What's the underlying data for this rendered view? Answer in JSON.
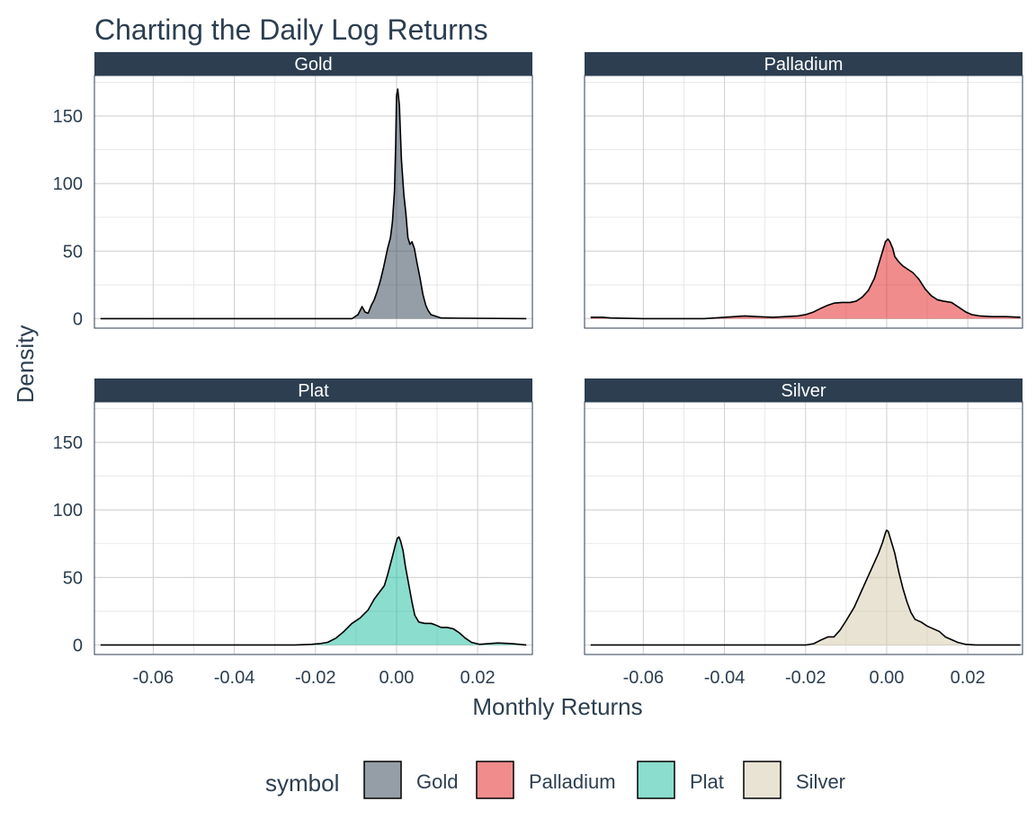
{
  "chart_data": {
    "type": "area",
    "title": "Charting the Daily Log Returns",
    "xlabel": "Monthly Returns",
    "ylabel": "Density",
    "xlim": [
      -0.0745,
      0.0335
    ],
    "ylim": [
      -7,
      180
    ],
    "x_ticks": [
      -0.06,
      -0.04,
      -0.02,
      0.0,
      0.02
    ],
    "x_tick_labels": [
      "-0.06",
      "-0.04",
      "-0.02",
      "0.00",
      "0.02"
    ],
    "y_ticks": [
      0,
      50,
      100,
      150
    ],
    "y_tick_labels": [
      "0",
      "50",
      "100",
      "150"
    ],
    "grid": true,
    "legend": {
      "title": "symbol",
      "position": "bottom"
    },
    "panels": [
      {
        "name": "Gold",
        "color": "#2c3e50",
        "points": [
          [
            -0.073,
            0
          ],
          [
            -0.011,
            0
          ],
          [
            -0.0095,
            3
          ],
          [
            -0.0085,
            9
          ],
          [
            -0.0078,
            5
          ],
          [
            -0.007,
            4
          ],
          [
            -0.0062,
            10
          ],
          [
            -0.0055,
            14
          ],
          [
            -0.0048,
            20
          ],
          [
            -0.004,
            28
          ],
          [
            -0.0032,
            38
          ],
          [
            -0.0022,
            52
          ],
          [
            -0.0015,
            60
          ],
          [
            -0.001,
            72
          ],
          [
            -0.0005,
            95
          ],
          [
            -0.0002,
            130
          ],
          [
            0,
            165
          ],
          [
            0.0003,
            170
          ],
          [
            0.0007,
            158
          ],
          [
            0.0012,
            118
          ],
          [
            0.0018,
            92
          ],
          [
            0.0023,
            78
          ],
          [
            0.0028,
            60
          ],
          [
            0.0033,
            55
          ],
          [
            0.0038,
            57
          ],
          [
            0.0044,
            52
          ],
          [
            0.005,
            42
          ],
          [
            0.0058,
            30
          ],
          [
            0.0065,
            18
          ],
          [
            0.0072,
            10
          ],
          [
            0.0078,
            6
          ],
          [
            0.0085,
            3
          ],
          [
            0.0095,
            2
          ],
          [
            0.011,
            0.5
          ],
          [
            0.032,
            0
          ]
        ]
      },
      {
        "name": "Palladium",
        "color": "#e31a1c",
        "points": [
          [
            -0.073,
            1
          ],
          [
            -0.07,
            1
          ],
          [
            -0.068,
            0.5
          ],
          [
            -0.06,
            0
          ],
          [
            -0.045,
            0
          ],
          [
            -0.04,
            1
          ],
          [
            -0.035,
            2
          ],
          [
            -0.032,
            1.5
          ],
          [
            -0.028,
            1
          ],
          [
            -0.022,
            2
          ],
          [
            -0.02,
            3
          ],
          [
            -0.018,
            5
          ],
          [
            -0.016,
            8
          ],
          [
            -0.0145,
            10
          ],
          [
            -0.013,
            11.5
          ],
          [
            -0.011,
            12
          ],
          [
            -0.009,
            12
          ],
          [
            -0.0075,
            13
          ],
          [
            -0.006,
            16
          ],
          [
            -0.0045,
            21
          ],
          [
            -0.003,
            30
          ],
          [
            -0.002,
            40
          ],
          [
            -0.001,
            50
          ],
          [
            -0.0003,
            57
          ],
          [
            0.0003,
            59
          ],
          [
            0.0008,
            57
          ],
          [
            0.0015,
            52
          ],
          [
            0.002,
            46
          ],
          [
            0.003,
            42
          ],
          [
            0.004,
            39
          ],
          [
            0.005,
            37
          ],
          [
            0.0065,
            34
          ],
          [
            0.008,
            29
          ],
          [
            0.0095,
            22
          ],
          [
            0.011,
            17
          ],
          [
            0.0125,
            14
          ],
          [
            0.014,
            13
          ],
          [
            0.016,
            12
          ],
          [
            0.018,
            8
          ],
          [
            0.0195,
            5
          ],
          [
            0.021,
            3
          ],
          [
            0.023,
            2
          ],
          [
            0.026,
            1.5
          ],
          [
            0.0295,
            1.5
          ],
          [
            0.033,
            1
          ]
        ]
      },
      {
        "name": "Plat",
        "color": "#18bc9c",
        "points": [
          [
            -0.073,
            0
          ],
          [
            -0.025,
            0
          ],
          [
            -0.021,
            0.5
          ],
          [
            -0.019,
            1
          ],
          [
            -0.017,
            2
          ],
          [
            -0.015,
            5
          ],
          [
            -0.013,
            10
          ],
          [
            -0.011,
            16
          ],
          [
            -0.009,
            20
          ],
          [
            -0.007,
            26
          ],
          [
            -0.0055,
            34
          ],
          [
            -0.004,
            40
          ],
          [
            -0.003,
            44
          ],
          [
            -0.0022,
            52
          ],
          [
            -0.0015,
            60
          ],
          [
            -0.0008,
            68
          ],
          [
            -0.0003,
            74
          ],
          [
            0.0002,
            79
          ],
          [
            0.0006,
            80
          ],
          [
            0.001,
            77
          ],
          [
            0.0016,
            70
          ],
          [
            0.0022,
            58
          ],
          [
            0.003,
            45
          ],
          [
            0.0038,
            32
          ],
          [
            0.0045,
            22
          ],
          [
            0.0055,
            17
          ],
          [
            0.007,
            16
          ],
          [
            0.0085,
            16
          ],
          [
            0.0095,
            15
          ],
          [
            0.011,
            13
          ],
          [
            0.0125,
            13
          ],
          [
            0.014,
            12
          ],
          [
            0.0155,
            9
          ],
          [
            0.017,
            5
          ],
          [
            0.0185,
            2
          ],
          [
            0.0205,
            0.5
          ],
          [
            0.025,
            1.5
          ],
          [
            0.0285,
            1
          ],
          [
            0.032,
            0
          ]
        ]
      },
      {
        "name": "Silver",
        "color": "#d2c7a7",
        "points": [
          [
            -0.073,
            0
          ],
          [
            -0.02,
            0
          ],
          [
            -0.018,
            1
          ],
          [
            -0.016,
            4
          ],
          [
            -0.0145,
            6
          ],
          [
            -0.013,
            6
          ],
          [
            -0.0115,
            11
          ],
          [
            -0.01,
            18
          ],
          [
            -0.008,
            28
          ],
          [
            -0.0065,
            38
          ],
          [
            -0.005,
            48
          ],
          [
            -0.0035,
            58
          ],
          [
            -0.002,
            68
          ],
          [
            -0.001,
            76
          ],
          [
            -0.0003,
            83
          ],
          [
            0,
            85
          ],
          [
            0.0004,
            84
          ],
          [
            0.001,
            78
          ],
          [
            0.002,
            68
          ],
          [
            0.003,
            54
          ],
          [
            0.004,
            42
          ],
          [
            0.005,
            32
          ],
          [
            0.006,
            24
          ],
          [
            0.007,
            19
          ],
          [
            0.0085,
            17
          ],
          [
            0.01,
            14
          ],
          [
            0.0115,
            12
          ],
          [
            0.013,
            10
          ],
          [
            0.0145,
            6
          ],
          [
            0.016,
            4
          ],
          [
            0.0175,
            2
          ],
          [
            0.0195,
            0.5
          ],
          [
            0.022,
            0
          ],
          [
            0.033,
            0
          ]
        ]
      }
    ]
  }
}
